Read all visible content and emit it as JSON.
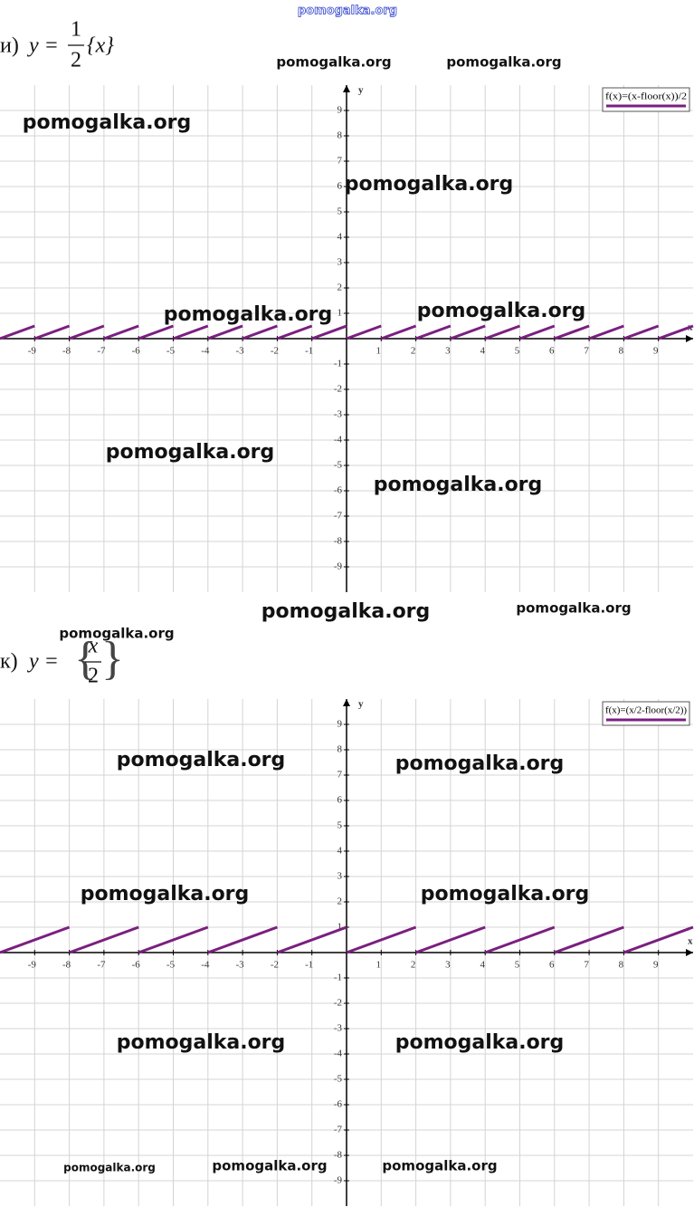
{
  "watermarks": [
    "pomogalka.org",
    "pomogalka.org",
    "pomogalka.org",
    "pomogalka.org",
    "pomogalka.org",
    "pomogalka.org",
    "pomogalka.org",
    "pomogalka.org",
    "pomogalka.org",
    "pomogalka.org",
    "pomogalka.org",
    "pomogalka.org",
    "pomogalka.org",
    "pomogalka.org",
    "pomogalka.org",
    "pomogalka.org",
    "pomogalka.org",
    "pomogalka.org",
    "pomogalka.org",
    "pomogalka.org",
    "pomogalka.org"
  ],
  "chart_data": [
    {
      "type": "line",
      "title": {
        "label": "и)",
        "lhs": "y =",
        "numerator": "1",
        "denominator": "2",
        "rhs": "{x}"
      },
      "x_label": "x",
      "y_label": "y",
      "xlim": [
        -10,
        10
      ],
      "ylim": [
        -10,
        10
      ],
      "xticks": [
        -9,
        -8,
        -7,
        -6,
        -5,
        -4,
        -3,
        -2,
        -1,
        1,
        2,
        3,
        4,
        5,
        6,
        7,
        8,
        9
      ],
      "yticks": [
        -9,
        -8,
        -7,
        -6,
        -5,
        -4,
        -3,
        -2,
        -1,
        1,
        2,
        3,
        4,
        5,
        6,
        7,
        8,
        9
      ],
      "grid": true,
      "x": [
        -10,
        -9,
        -9,
        -9,
        -8,
        -8,
        -8,
        -7,
        -7,
        -7,
        -6,
        -6,
        -6,
        -5,
        -5,
        -5,
        -4,
        -4,
        -4,
        -3,
        -3,
        -3,
        -2,
        -2,
        -2,
        -1,
        -1,
        -1,
        0,
        0,
        0,
        1,
        1,
        1,
        2,
        2,
        2,
        3,
        3,
        3,
        4,
        4,
        4,
        5,
        5,
        5,
        6,
        6,
        6,
        7,
        7,
        7,
        8,
        8,
        8,
        9,
        9,
        9,
        10
      ],
      "series": [
        {
          "name": "f(x)=(x-floor(x))/2",
          "color": "#7a1f80",
          "values": [
            0,
            0.5,
            null,
            0,
            0.5,
            null,
            0,
            0.5,
            null,
            0,
            0.5,
            null,
            0,
            0.5,
            null,
            0,
            0.5,
            null,
            0,
            0.5,
            null,
            0,
            0.5,
            null,
            0,
            0.5,
            null,
            0,
            0.5,
            null,
            0,
            0.5,
            null,
            0,
            0.5,
            null,
            0,
            0.5,
            null,
            0,
            0.5,
            null,
            0,
            0.5,
            null,
            0,
            0.5,
            null,
            0,
            0.5,
            null,
            0,
            0.5,
            null,
            0,
            0.5,
            null,
            0,
            0.5
          ]
        }
      ]
    },
    {
      "type": "line",
      "title": {
        "label": "к)",
        "lhs": "y =",
        "open": "{",
        "numerator": "x",
        "denominator": "2",
        "close": "}"
      },
      "x_label": "x",
      "y_label": "y",
      "xlim": [
        -10,
        10
      ],
      "ylim": [
        -10,
        10
      ],
      "xticks": [
        -9,
        -8,
        -7,
        -6,
        -5,
        -4,
        -3,
        -2,
        -1,
        1,
        2,
        3,
        4,
        5,
        6,
        7,
        8,
        9
      ],
      "yticks": [
        -9,
        -8,
        -7,
        -6,
        -5,
        -4,
        -3,
        -2,
        -1,
        1,
        2,
        3,
        4,
        5,
        6,
        7,
        8,
        9
      ],
      "grid": true,
      "x": [
        -10,
        -8,
        -8,
        -8,
        -6,
        -6,
        -6,
        -4,
        -4,
        -4,
        -2,
        -2,
        -2,
        0,
        0,
        0,
        2,
        2,
        2,
        4,
        4,
        4,
        6,
        6,
        6,
        8,
        8,
        8,
        10
      ],
      "series": [
        {
          "name": "f(x)=(x/2-floor(x/2))",
          "color": "#7a1f80",
          "values": [
            0,
            1,
            null,
            0,
            1,
            null,
            0,
            1,
            null,
            0,
            1,
            null,
            0,
            1,
            null,
            0,
            1,
            null,
            0,
            1,
            null,
            0,
            1,
            null,
            0,
            1,
            null,
            0,
            1
          ]
        }
      ]
    }
  ]
}
